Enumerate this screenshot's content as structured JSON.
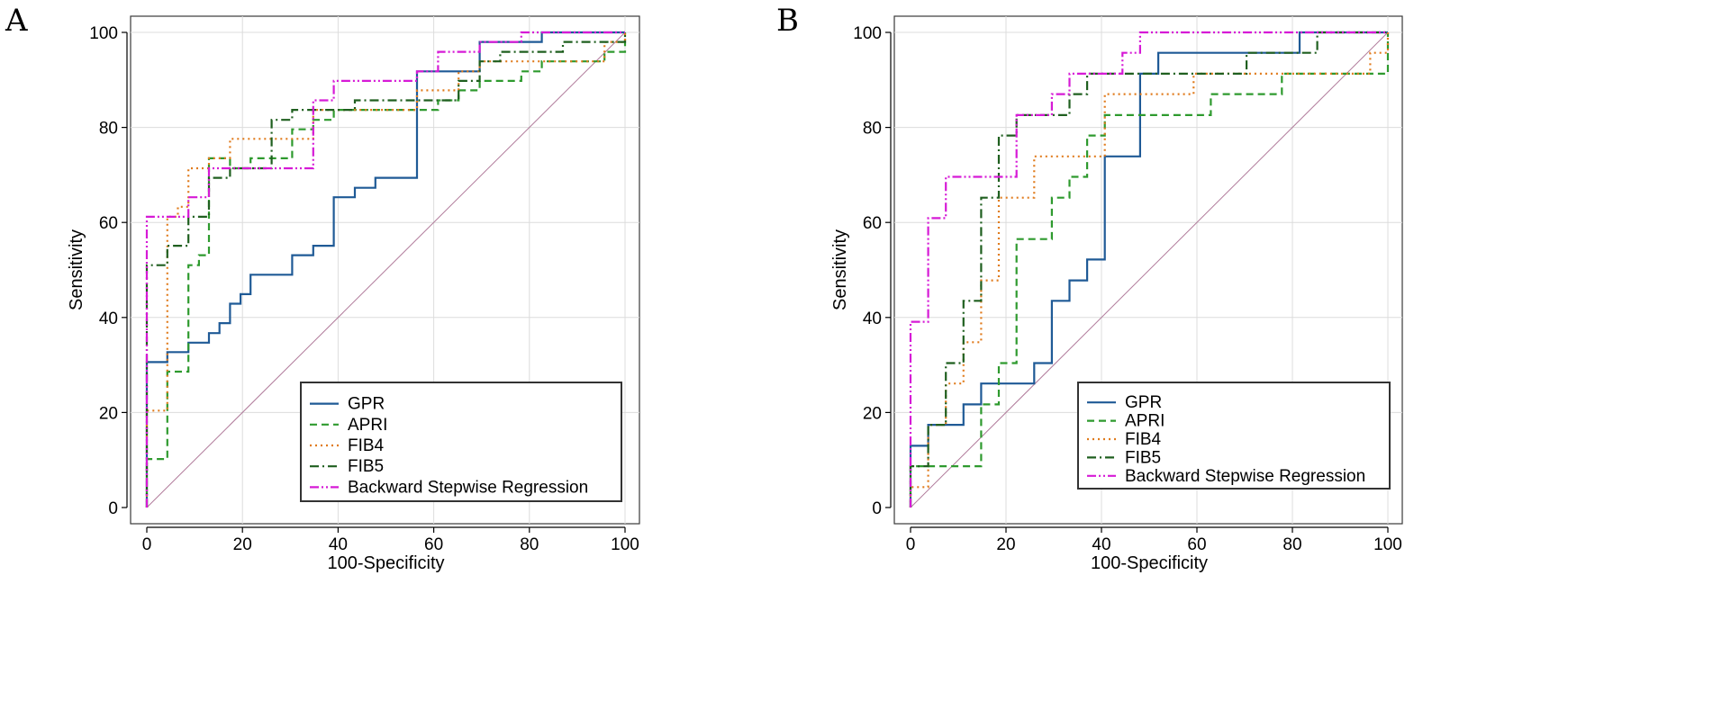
{
  "chart_data": [
    {
      "panel": "A",
      "type": "line",
      "title": "",
      "xlabel": "100-Specificity",
      "ylabel": "Sensitivity",
      "xlim": [
        0,
        100
      ],
      "ylim": [
        0,
        100
      ],
      "xticks": [
        0,
        20,
        40,
        60,
        80,
        100
      ],
      "yticks": [
        0,
        20,
        40,
        60,
        80,
        100
      ],
      "grid": true,
      "legend_position": "bottom-right",
      "diagonal": [
        [
          0,
          0
        ],
        [
          100,
          100
        ]
      ],
      "series": [
        {
          "name": "GPR",
          "color": "#1f5a96",
          "dash": "solid",
          "points": [
            [
              0,
              0
            ],
            [
              0,
              30.6
            ],
            [
              4.3,
              30.6
            ],
            [
              4.3,
              32.7
            ],
            [
              8.7,
              32.7
            ],
            [
              8.7,
              34.7
            ],
            [
              13,
              34.7
            ],
            [
              13,
              36.7
            ],
            [
              15.2,
              36.7
            ],
            [
              15.2,
              38.8
            ],
            [
              17.4,
              38.8
            ],
            [
              17.4,
              40.8
            ],
            [
              17.4,
              42.9
            ],
            [
              19.6,
              42.9
            ],
            [
              19.6,
              44.9
            ],
            [
              21.7,
              44.9
            ],
            [
              21.7,
              46.9
            ],
            [
              21.7,
              49
            ],
            [
              30.4,
              49
            ],
            [
              30.4,
              51
            ],
            [
              30.4,
              53.1
            ],
            [
              34.8,
              53.1
            ],
            [
              34.8,
              55.1
            ],
            [
              39.1,
              55.1
            ],
            [
              39.1,
              65.3
            ],
            [
              43.5,
              65.3
            ],
            [
              43.5,
              67.3
            ],
            [
              47.8,
              67.3
            ],
            [
              47.8,
              69.4
            ],
            [
              56.5,
              69.4
            ],
            [
              56.5,
              91.8
            ],
            [
              69.6,
              91.8
            ],
            [
              69.6,
              98
            ],
            [
              82.6,
              98
            ],
            [
              82.6,
              100
            ],
            [
              100,
              100
            ]
          ]
        },
        {
          "name": "APRI",
          "color": "#2e9a2e",
          "dash": "8,5",
          "points": [
            [
              0,
              0
            ],
            [
              0,
              10.2
            ],
            [
              4.3,
              10.2
            ],
            [
              4.3,
              28.6
            ],
            [
              8.7,
              28.6
            ],
            [
              8.7,
              51
            ],
            [
              10.9,
              51
            ],
            [
              10.9,
              53.1
            ],
            [
              13,
              53.1
            ],
            [
              13,
              73.5
            ],
            [
              17.4,
              73.5
            ],
            [
              17.4,
              71.4
            ],
            [
              21.7,
              71.4
            ],
            [
              21.7,
              73.5
            ],
            [
              30.4,
              73.5
            ],
            [
              30.4,
              79.6
            ],
            [
              34.8,
              79.6
            ],
            [
              34.8,
              81.6
            ],
            [
              39.1,
              81.6
            ],
            [
              39.1,
              83.7
            ],
            [
              56.5,
              83.7
            ],
            [
              60.9,
              83.7
            ],
            [
              60.9,
              85.7
            ],
            [
              65.2,
              85.7
            ],
            [
              65.2,
              87.8
            ],
            [
              69.6,
              87.8
            ],
            [
              69.6,
              89.8
            ],
            [
              78.3,
              89.8
            ],
            [
              78.3,
              91.8
            ],
            [
              82.6,
              91.8
            ],
            [
              82.6,
              93.9
            ],
            [
              95.7,
              93.9
            ],
            [
              95.7,
              95.9
            ],
            [
              100,
              95.9
            ],
            [
              100,
              100
            ]
          ]
        },
        {
          "name": "FIB4",
          "color": "#e07b1c",
          "dash": "2,4",
          "points": [
            [
              0,
              0
            ],
            [
              0,
              20.4
            ],
            [
              4.3,
              20.4
            ],
            [
              4.3,
              61.2
            ],
            [
              6.5,
              61.2
            ],
            [
              6.5,
              63.3
            ],
            [
              8.7,
              63.3
            ],
            [
              8.7,
              71.4
            ],
            [
              13,
              71.4
            ],
            [
              13,
              73.5
            ],
            [
              17.4,
              73.5
            ],
            [
              17.4,
              77.6
            ],
            [
              30.4,
              77.6
            ],
            [
              30.4,
              77.6
            ],
            [
              34.8,
              77.6
            ],
            [
              34.8,
              83.7
            ],
            [
              56.5,
              83.7
            ],
            [
              56.5,
              87.8
            ],
            [
              65.2,
              87.8
            ],
            [
              65.2,
              91.8
            ],
            [
              69.6,
              91.8
            ],
            [
              69.6,
              93.9
            ],
            [
              95.7,
              93.9
            ],
            [
              95.7,
              98
            ],
            [
              100,
              98
            ],
            [
              100,
              100
            ]
          ]
        },
        {
          "name": "FIB5",
          "color": "#1f5f1f",
          "dash": "10,4,2,4",
          "points": [
            [
              0,
              0
            ],
            [
              0,
              51
            ],
            [
              4.3,
              51
            ],
            [
              4.3,
              55.1
            ],
            [
              8.7,
              55.1
            ],
            [
              8.7,
              61.2
            ],
            [
              13,
              61.2
            ],
            [
              13,
              69.4
            ],
            [
              17.4,
              69.4
            ],
            [
              17.4,
              71.4
            ],
            [
              26.1,
              71.4
            ],
            [
              26.1,
              81.6
            ],
            [
              30.4,
              81.6
            ],
            [
              30.4,
              83.7
            ],
            [
              43.5,
              83.7
            ],
            [
              43.5,
              85.7
            ],
            [
              56.5,
              85.7
            ],
            [
              65.2,
              85.7
            ],
            [
              65.2,
              89.8
            ],
            [
              69.6,
              89.8
            ],
            [
              69.6,
              93.9
            ],
            [
              73.9,
              93.9
            ],
            [
              73.9,
              95.9
            ],
            [
              87,
              95.9
            ],
            [
              87,
              98
            ],
            [
              100,
              98
            ],
            [
              100,
              100
            ]
          ]
        },
        {
          "name": "Backward Stepwise Regression",
          "color": "#d61ad6",
          "dash": "10,3,2,3,2,3",
          "points": [
            [
              0,
              0
            ],
            [
              0,
              61.2
            ],
            [
              4.3,
              61.2
            ],
            [
              4.3,
              61.2
            ],
            [
              8.7,
              61.2
            ],
            [
              8.7,
              65.3
            ],
            [
              13,
              65.3
            ],
            [
              13,
              71.4
            ],
            [
              34.8,
              71.4
            ],
            [
              34.8,
              85.7
            ],
            [
              39.1,
              85.7
            ],
            [
              39.1,
              89.8
            ],
            [
              56.5,
              89.8
            ],
            [
              56.5,
              91.8
            ],
            [
              60.9,
              91.8
            ],
            [
              60.9,
              95.9
            ],
            [
              69.6,
              95.9
            ],
            [
              69.6,
              98
            ],
            [
              78.3,
              98
            ],
            [
              78.3,
              100
            ],
            [
              100,
              100
            ]
          ]
        }
      ]
    },
    {
      "panel": "B",
      "type": "line",
      "title": "",
      "xlabel": "100-Specificity",
      "ylabel": "Sensitivity",
      "xlim": [
        0,
        100
      ],
      "ylim": [
        0,
        100
      ],
      "xticks": [
        0,
        20,
        40,
        60,
        80,
        100
      ],
      "yticks": [
        0,
        20,
        40,
        60,
        80,
        100
      ],
      "grid": true,
      "legend_position": "bottom-right",
      "diagonal": [
        [
          0,
          0
        ],
        [
          100,
          100
        ]
      ],
      "series": [
        {
          "name": "GPR",
          "color": "#1f5a96",
          "dash": "solid",
          "points": [
            [
              0,
              0
            ],
            [
              0,
              13
            ],
            [
              3.7,
              13
            ],
            [
              3.7,
              17.4
            ],
            [
              11.1,
              17.4
            ],
            [
              11.1,
              21.7
            ],
            [
              14.8,
              21.7
            ],
            [
              14.8,
              26.1
            ],
            [
              25.9,
              26.1
            ],
            [
              25.9,
              30.4
            ],
            [
              29.6,
              30.4
            ],
            [
              29.6,
              43.5
            ],
            [
              33.3,
              43.5
            ],
            [
              33.3,
              47.8
            ],
            [
              37,
              47.8
            ],
            [
              37,
              52.2
            ],
            [
              40.7,
              52.2
            ],
            [
              40.7,
              73.9
            ],
            [
              48.1,
              73.9
            ],
            [
              48.1,
              91.3
            ],
            [
              51.9,
              91.3
            ],
            [
              51.9,
              95.7
            ],
            [
              81.5,
              95.7
            ],
            [
              81.5,
              100
            ],
            [
              100,
              100
            ]
          ]
        },
        {
          "name": "APRI",
          "color": "#2e9a2e",
          "dash": "8,5",
          "points": [
            [
              0,
              0
            ],
            [
              0,
              8.7
            ],
            [
              14.8,
              8.7
            ],
            [
              14.8,
              21.7
            ],
            [
              18.5,
              21.7
            ],
            [
              18.5,
              30.4
            ],
            [
              22.2,
              30.4
            ],
            [
              22.2,
              56.5
            ],
            [
              29.6,
              56.5
            ],
            [
              29.6,
              65.2
            ],
            [
              33.3,
              65.2
            ],
            [
              33.3,
              69.6
            ],
            [
              37,
              69.6
            ],
            [
              37,
              78.3
            ],
            [
              40.7,
              78.3
            ],
            [
              40.7,
              82.6
            ],
            [
              62.9,
              82.6
            ],
            [
              62.9,
              87
            ],
            [
              77.8,
              87
            ],
            [
              77.8,
              91.3
            ],
            [
              100,
              91.3
            ],
            [
              100,
              100
            ]
          ]
        },
        {
          "name": "FIB4",
          "color": "#e07b1c",
          "dash": "2,4",
          "points": [
            [
              0,
              0
            ],
            [
              0,
              4.3
            ],
            [
              3.7,
              4.3
            ],
            [
              3.7,
              17.4
            ],
            [
              7.4,
              17.4
            ],
            [
              7.4,
              26.1
            ],
            [
              11.1,
              26.1
            ],
            [
              11.1,
              34.8
            ],
            [
              14.8,
              34.8
            ],
            [
              14.8,
              47.8
            ],
            [
              18.5,
              47.8
            ],
            [
              18.5,
              65.2
            ],
            [
              25.9,
              65.2
            ],
            [
              25.9,
              73.9
            ],
            [
              40.7,
              73.9
            ],
            [
              40.7,
              87
            ],
            [
              59.3,
              87
            ],
            [
              59.3,
              91.3
            ],
            [
              96.3,
              91.3
            ],
            [
              96.3,
              95.7
            ],
            [
              100,
              95.7
            ],
            [
              100,
              100
            ]
          ]
        },
        {
          "name": "FIB5",
          "color": "#1f5f1f",
          "dash": "10,4,2,4",
          "points": [
            [
              0,
              0
            ],
            [
              0,
              8.7
            ],
            [
              3.7,
              8.7
            ],
            [
              3.7,
              17.4
            ],
            [
              7.4,
              17.4
            ],
            [
              7.4,
              30.4
            ],
            [
              11.1,
              30.4
            ],
            [
              11.1,
              43.5
            ],
            [
              14.8,
              43.5
            ],
            [
              14.8,
              65.2
            ],
            [
              18.5,
              65.2
            ],
            [
              18.5,
              78.3
            ],
            [
              22.2,
              78.3
            ],
            [
              22.2,
              82.6
            ],
            [
              33.3,
              82.6
            ],
            [
              33.3,
              87
            ],
            [
              37,
              87
            ],
            [
              37,
              91.3
            ],
            [
              70.4,
              91.3
            ],
            [
              70.4,
              95.7
            ],
            [
              85.2,
              95.7
            ],
            [
              85.2,
              100
            ],
            [
              100,
              100
            ]
          ]
        },
        {
          "name": "Backward Stepwise Regression",
          "color": "#d61ad6",
          "dash": "10,3,2,3,2,3",
          "points": [
            [
              0,
              0
            ],
            [
              0,
              39.1
            ],
            [
              3.7,
              39.1
            ],
            [
              3.7,
              60.9
            ],
            [
              7.4,
              60.9
            ],
            [
              7.4,
              69.6
            ],
            [
              22.2,
              69.6
            ],
            [
              22.2,
              82.6
            ],
            [
              29.6,
              82.6
            ],
            [
              29.6,
              87
            ],
            [
              33.3,
              87
            ],
            [
              33.3,
              91.3
            ],
            [
              44.4,
              91.3
            ],
            [
              44.4,
              95.7
            ],
            [
              48.1,
              95.7
            ],
            [
              48.1,
              100
            ],
            [
              100,
              100
            ]
          ]
        }
      ]
    }
  ]
}
